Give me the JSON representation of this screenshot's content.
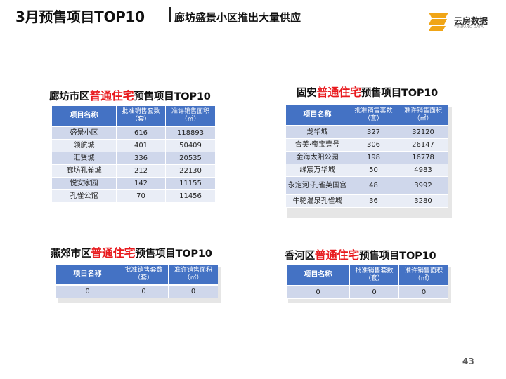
{
  "header": {
    "title": "3月预售项目TOP10",
    "subtitle": "廊坊盛景小区推出大量供应",
    "logo_text": "云房数据",
    "logo_sub": "YUNFANG DATA",
    "logo_color": "#f0a516"
  },
  "accent_red": "#e8191d",
  "table_header_color": "#4472c4",
  "sections": {
    "langfang": {
      "title_prefix": "廊坊市区",
      "title_highlight": "普通住宅",
      "title_suffix": "预售项目TOP10",
      "columns": [
        "项目名称",
        "批准销售套数（套）",
        "准许销售面积（㎡）"
      ],
      "rows": [
        [
          "盛景小区",
          "616",
          "118893"
        ],
        [
          "领航城",
          "401",
          "50409"
        ],
        [
          "汇贤城",
          "336",
          "20535"
        ],
        [
          "廊坊孔雀城",
          "212",
          "22130"
        ],
        [
          "悦安家园",
          "142",
          "11155"
        ],
        [
          "孔雀公馆",
          "70",
          "11456"
        ]
      ]
    },
    "guan": {
      "title_prefix": "固安",
      "title_highlight": "普通住宅",
      "title_suffix": "预售项目TOP10",
      "columns": [
        "项目名称",
        "批准销售套数（套）",
        "准许销售面积（㎡）"
      ],
      "rows": [
        [
          "龙华城",
          "327",
          "32120"
        ],
        [
          "合美·帝宝壹号",
          "306",
          "26147"
        ],
        [
          "金海太阳公园",
          "198",
          "16778"
        ],
        [
          "绿宸万华城",
          "50",
          "4983"
        ],
        [
          "永定河·孔雀英国宫",
          "48",
          "3992"
        ],
        [
          "牛驼温泉孔雀城",
          "36",
          "3280"
        ]
      ]
    },
    "yanjiao": {
      "title_prefix": "燕郊市区",
      "title_highlight": "普通住宅",
      "title_suffix": "预售项目TOP10",
      "columns": [
        "项目名称",
        "批准销售套数（套）",
        "准许销售面积（㎡）"
      ],
      "rows": [
        [
          "0",
          "0",
          "0"
        ]
      ]
    },
    "xianghe": {
      "title_prefix": "香河区",
      "title_highlight": "普通住宅",
      "title_suffix": "预售项目TOP10",
      "columns": [
        "项目名称",
        "批准销售套数（套）",
        "准许销售面积（㎡）"
      ],
      "rows": [
        [
          "0",
          "0",
          "0"
        ]
      ]
    }
  },
  "page_number": "43"
}
